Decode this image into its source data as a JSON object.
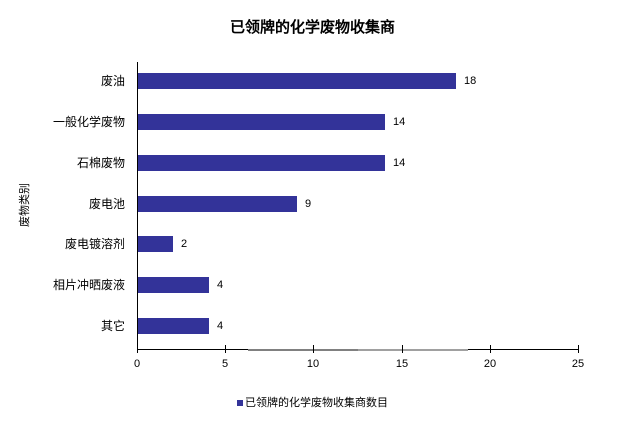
{
  "chart_data": {
    "type": "bar",
    "orientation": "horizontal",
    "title": "已领牌的化学废物收集商",
    "xlabel": "",
    "ylabel": "废物类别",
    "categories": [
      "废油",
      "一般化学废物",
      "石棉废物",
      "废电池",
      "废电镀溶剂",
      "相片冲晒废液",
      "其它"
    ],
    "series": [
      {
        "name": "已领牌的化学废物收集商数目",
        "color": "#333399",
        "values": [
          18,
          14,
          14,
          9,
          2,
          4,
          4
        ]
      }
    ],
    "xlim": [
      0,
      25
    ],
    "xticks": [
      0,
      5,
      10,
      15,
      20,
      25
    ],
    "grid": false,
    "legend_position": "bottom",
    "data_labels": true
  },
  "labels": {
    "title": "已领牌的化学废物收集商",
    "ylabel": "废物类别",
    "legend": "已领牌的化学废物收集商数目",
    "xticks": [
      "0",
      "5",
      "10",
      "15",
      "20",
      "25"
    ],
    "categories": [
      "废油",
      "一般化学废物",
      "石棉废物",
      "废电池",
      "废电镀溶剂",
      "相片冲晒废液",
      "其它"
    ],
    "values": [
      "18",
      "14",
      "14",
      "9",
      "2",
      "4",
      "4"
    ]
  }
}
